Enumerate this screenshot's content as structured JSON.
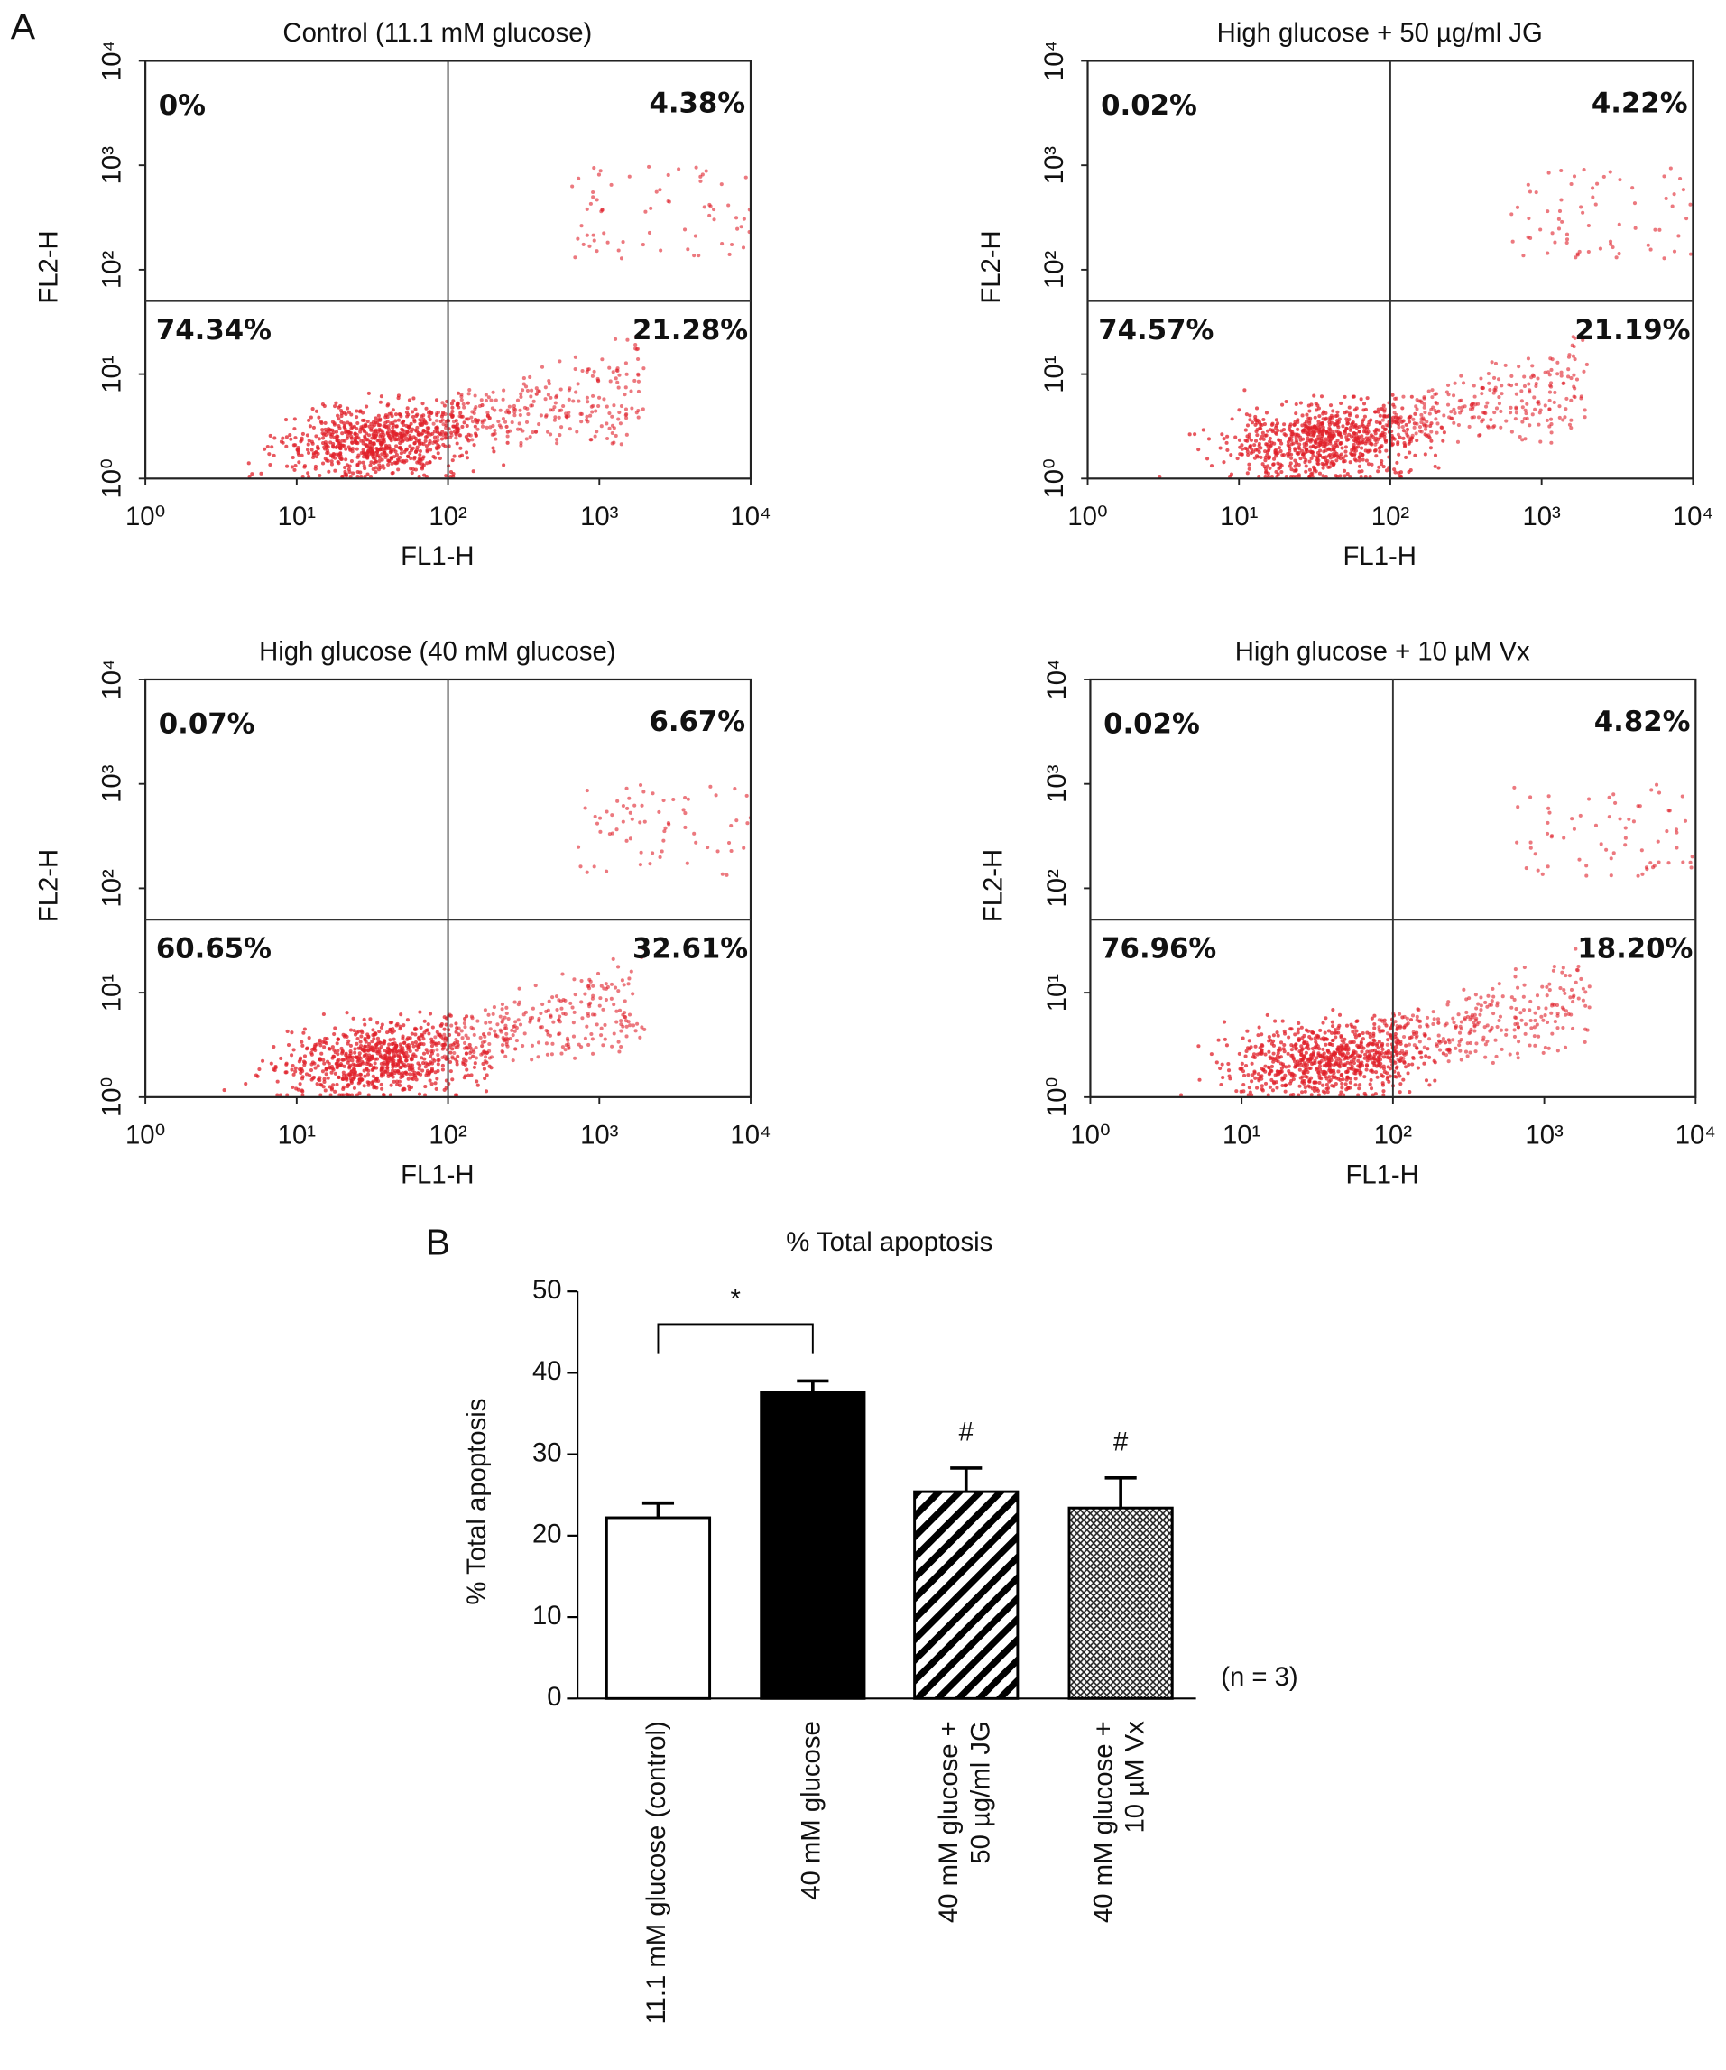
{
  "panel_labels": [
    "A",
    "B"
  ],
  "chart_data": [
    {
      "type": "quadrant",
      "title": "Control (11.1 mM glucose)",
      "x_label": "FL1-H",
      "y_label": "FL2-H",
      "log_scale": true,
      "xlim": [
        1,
        10000
      ],
      "ylim": [
        1,
        10000
      ],
      "xticks": [
        {
          "value": 1,
          "label": "10⁰"
        },
        {
          "value": 10,
          "label": "10¹"
        },
        {
          "value": 100,
          "label": "10²"
        },
        {
          "value": 1000,
          "label": "10³"
        },
        {
          "value": 10000,
          "label": "10⁴"
        }
      ],
      "yticks": [
        {
          "value": 1,
          "label": "10⁰"
        },
        {
          "value": 10,
          "label": "10¹"
        },
        {
          "value": 100,
          "label": "10²"
        },
        {
          "value": 1000,
          "label": "10³"
        },
        {
          "value": 10000,
          "label": "10⁴"
        }
      ],
      "gate": [
        100,
        50
      ],
      "quadrant_labels": [
        "0%",
        "4.38%",
        "74.34%",
        "21.28%"
      ],
      "color": "#e0202a"
    },
    {
      "type": "quadrant",
      "title": "High glucose + 50 µg/ml JG",
      "x_label": "FL1-H",
      "y_label": "FL2-H",
      "log_scale": true,
      "xlim": [
        1,
        10000
      ],
      "ylim": [
        1,
        10000
      ],
      "xticks": [
        {
          "value": 1,
          "label": "10⁰"
        },
        {
          "value": 10,
          "label": "10¹"
        },
        {
          "value": 100,
          "label": "10²"
        },
        {
          "value": 1000,
          "label": "10³"
        },
        {
          "value": 10000,
          "label": "10⁴"
        }
      ],
      "yticks": [
        {
          "value": 1,
          "label": "10⁰"
        },
        {
          "value": 10,
          "label": "10¹"
        },
        {
          "value": 100,
          "label": "10²"
        },
        {
          "value": 1000,
          "label": "10³"
        },
        {
          "value": 10000,
          "label": "10⁴"
        }
      ],
      "gate": [
        100,
        50
      ],
      "quadrant_labels": [
        "0.02%",
        "4.22%",
        "74.57%",
        "21.19%"
      ],
      "color": "#e0202a"
    },
    {
      "type": "quadrant",
      "title": "High glucose (40 mM glucose)",
      "x_label": "FL1-H",
      "y_label": "FL2-H",
      "log_scale": true,
      "xlim": [
        1,
        10000
      ],
      "ylim": [
        1,
        10000
      ],
      "xticks": [
        {
          "value": 1,
          "label": "10⁰"
        },
        {
          "value": 10,
          "label": "10¹"
        },
        {
          "value": 100,
          "label": "10²"
        },
        {
          "value": 1000,
          "label": "10³"
        },
        {
          "value": 10000,
          "label": "10⁴"
        }
      ],
      "yticks": [
        {
          "value": 1,
          "label": "10⁰"
        },
        {
          "value": 10,
          "label": "10¹"
        },
        {
          "value": 100,
          "label": "10²"
        },
        {
          "value": 1000,
          "label": "10³"
        },
        {
          "value": 10000,
          "label": "10⁴"
        }
      ],
      "gate": [
        100,
        50
      ],
      "quadrant_labels": [
        "0.07%",
        "6.67%",
        "60.65%",
        "32.61%"
      ],
      "color": "#e0202a"
    },
    {
      "type": "quadrant",
      "title": "High glucose + 10 µM Vx",
      "x_label": "FL1-H",
      "y_label": "FL2-H",
      "log_scale": true,
      "xlim": [
        1,
        10000
      ],
      "ylim": [
        1,
        10000
      ],
      "xticks": [
        {
          "value": 1,
          "label": "10⁰"
        },
        {
          "value": 10,
          "label": "10¹"
        },
        {
          "value": 100,
          "label": "10²"
        },
        {
          "value": 1000,
          "label": "10³"
        },
        {
          "value": 10000,
          "label": "10⁴"
        }
      ],
      "yticks": [
        {
          "value": 1,
          "label": "10⁰"
        },
        {
          "value": 10,
          "label": "10¹"
        },
        {
          "value": 100,
          "label": "10²"
        },
        {
          "value": 1000,
          "label": "10³"
        },
        {
          "value": 10000,
          "label": "10⁴"
        }
      ],
      "gate": [
        100,
        50
      ],
      "quadrant_labels": [
        "0.02%",
        "4.82%",
        "76.96%",
        "18.20%"
      ],
      "color": "#e0202a"
    },
    {
      "type": "bar",
      "title": "% Total apoptosis",
      "y_label": "% Total apoptosis",
      "categories": [
        "11.1 mM glucose (control)",
        "40 mM glucose",
        "40 mM glucose +\n50 µg/ml JG",
        "40 mM glucose +\n10 µM Vx"
      ],
      "values": [
        22.2,
        37.6,
        25.4,
        23.4
      ],
      "errors": [
        1.8,
        1.4,
        2.9,
        3.7
      ],
      "fills": [
        "#ffffff",
        "#000000",
        "diagonal-hatch",
        "crosshatch"
      ],
      "ylim": [
        0,
        50
      ],
      "yticks": [
        0,
        10,
        20,
        30,
        40,
        50
      ],
      "annotations": [
        {
          "text": "*",
          "bracket": [
            0,
            1
          ]
        },
        {
          "text": "#",
          "bar": 2
        },
        {
          "text": "#",
          "bar": 3
        }
      ],
      "note": "(n = 3)"
    }
  ]
}
